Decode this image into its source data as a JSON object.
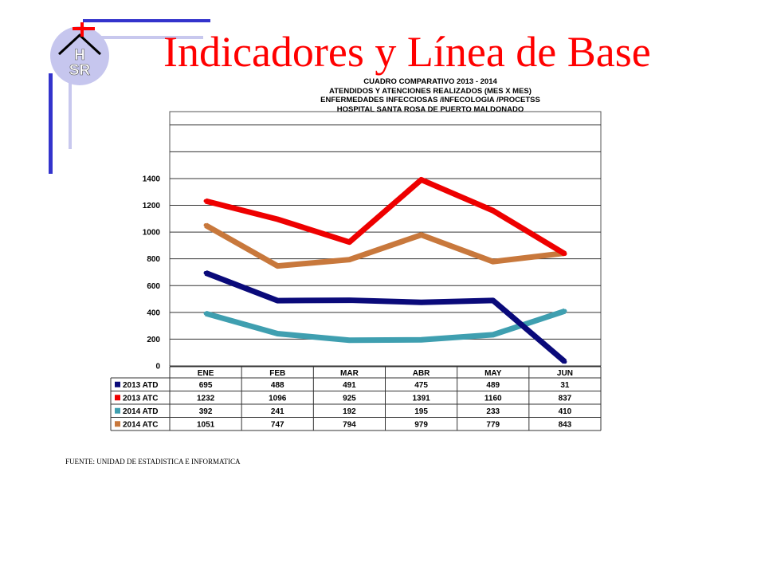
{
  "slide": {
    "title": "Indicadores y Línea de Base",
    "source_note": "FUENTE: UNIDAD DE ESTADISTICA E INFORMATICA",
    "logo": {
      "icon": "hsr-hospital-logo",
      "text_top": "H",
      "text_bottom": "SR"
    },
    "colors": {
      "title": "#ff0000",
      "deco_dark": "#3333cc",
      "deco_light": "#c8c8ee",
      "logo_circle": "#c6c6ee",
      "cross": "#ff0000"
    }
  },
  "chart_data": {
    "type": "line",
    "title_lines": [
      "CUADRO COMPARATIVO 2013 - 2014",
      "ATENDIDOS Y ATENCIONES  REALIZADOS  (MES X MES)",
      "ENFERMEDADES INFECCIOSAS /INFECOLOGIA /PROCETSS",
      "HOSPITAL  SANTA ROSA DE PUERTO MALDONADO"
    ],
    "categories": [
      "ENE",
      "FEB",
      "MAR",
      "ABR",
      "MAY",
      "JUN"
    ],
    "ylim": [
      0,
      1900
    ],
    "yticks": [
      0,
      200,
      400,
      600,
      800,
      1000,
      1200,
      1400
    ],
    "grid": true,
    "legend": "data-table",
    "series": [
      {
        "name": "2013 ATD",
        "color": "#0a0a7a",
        "values": [
          695,
          488,
          491,
          475,
          489,
          31
        ]
      },
      {
        "name": "2013 ATC",
        "color": "#ee0000",
        "values": [
          1232,
          1096,
          925,
          1391,
          1160,
          837
        ]
      },
      {
        "name": "2014 ATD",
        "color": "#3f9fb0",
        "values": [
          392,
          241,
          192,
          195,
          233,
          410
        ]
      },
      {
        "name": "2014 ATC",
        "color": "#c8783c",
        "values": [
          1051,
          747,
          794,
          979,
          779,
          843
        ]
      }
    ]
  }
}
